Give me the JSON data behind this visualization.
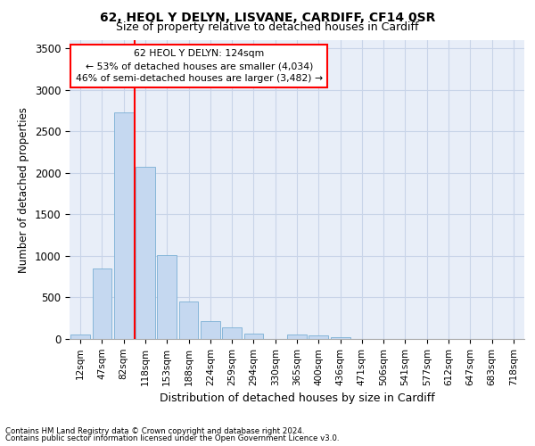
{
  "title_line1": "62, HEOL Y DELYN, LISVANE, CARDIFF, CF14 0SR",
  "title_line2": "Size of property relative to detached houses in Cardiff",
  "xlabel": "Distribution of detached houses by size in Cardiff",
  "ylabel": "Number of detached properties",
  "categories": [
    "12sqm",
    "47sqm",
    "82sqm",
    "118sqm",
    "153sqm",
    "188sqm",
    "224sqm",
    "259sqm",
    "294sqm",
    "330sqm",
    "365sqm",
    "400sqm",
    "436sqm",
    "471sqm",
    "506sqm",
    "541sqm",
    "577sqm",
    "612sqm",
    "647sqm",
    "683sqm",
    "718sqm"
  ],
  "values": [
    55,
    850,
    2730,
    2070,
    1010,
    450,
    210,
    145,
    65,
    0,
    55,
    38,
    20,
    0,
    0,
    0,
    0,
    0,
    0,
    0,
    0
  ],
  "bar_color": "#c5d8f0",
  "bar_edge_color": "#7aafd4",
  "grid_color": "#c8d4e8",
  "background_color": "#e8eef8",
  "annotation_box_text": "62 HEOL Y DELYN: 124sqm\n← 53% of detached houses are smaller (4,034)\n46% of semi-detached houses are larger (3,482) →",
  "annotation_box_color": "white",
  "annotation_box_edge_color": "red",
  "vline_color": "red",
  "vline_x": 3.0,
  "ylim": [
    0,
    3600
  ],
  "yticks": [
    0,
    500,
    1000,
    1500,
    2000,
    2500,
    3000,
    3500
  ],
  "footnote_line1": "Contains HM Land Registry data © Crown copyright and database right 2024.",
  "footnote_line2": "Contains public sector information licensed under the Open Government Licence v3.0."
}
